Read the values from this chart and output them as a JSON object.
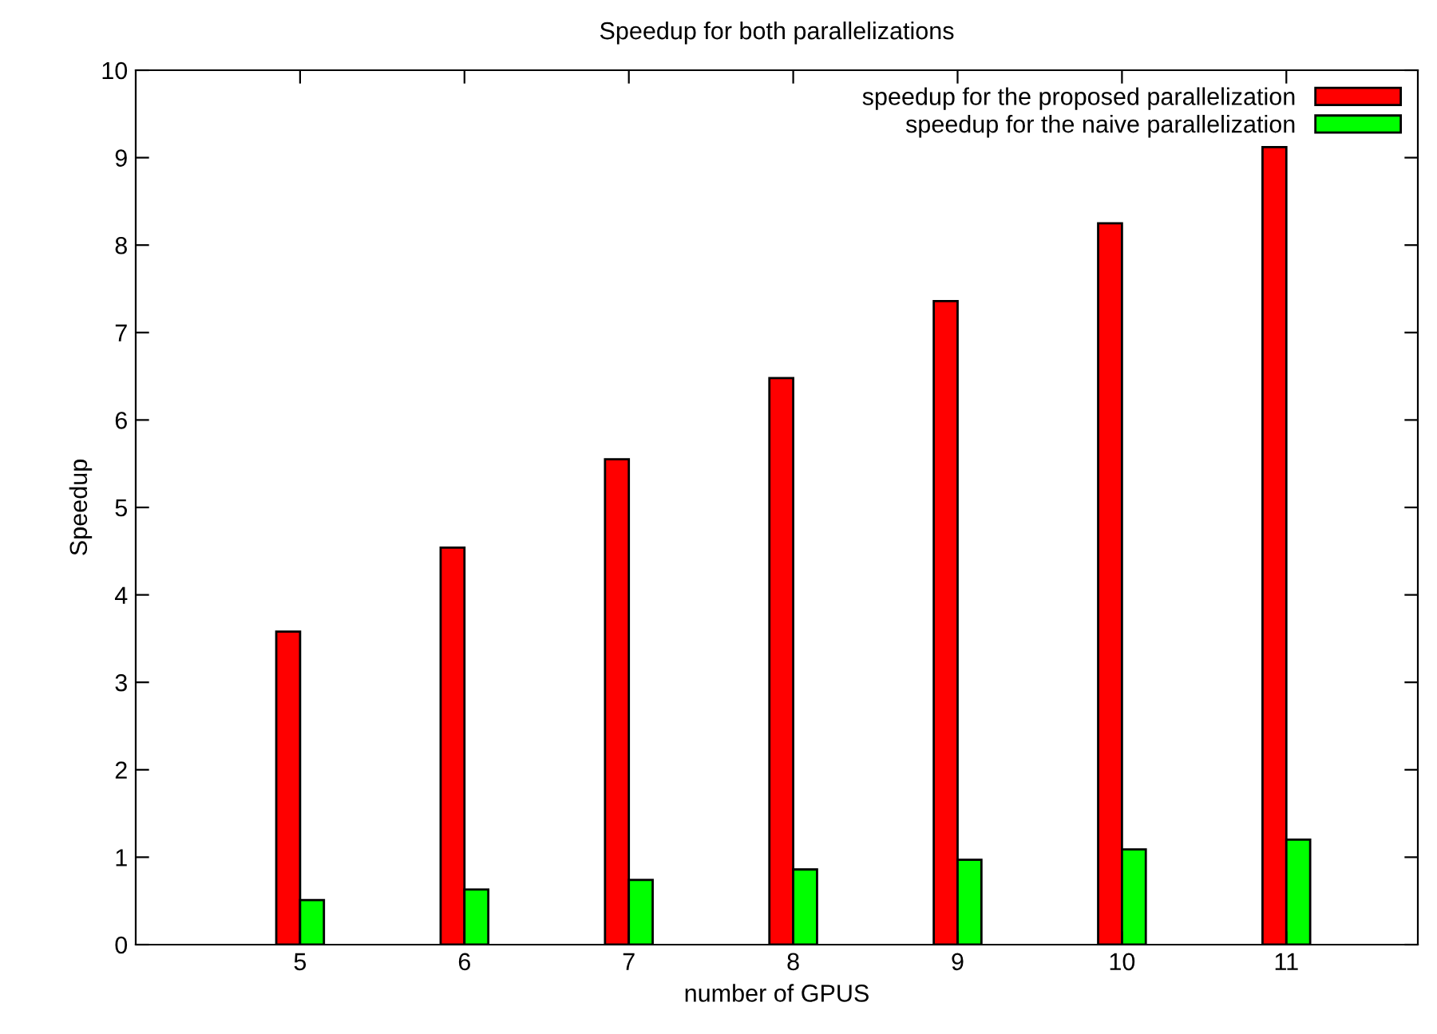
{
  "chart_data": {
    "type": "bar",
    "title": "Speedup for both parallelizations",
    "xlabel": "number of GPUS",
    "ylabel": "Speedup",
    "x": [
      5,
      6,
      7,
      8,
      9,
      10,
      11
    ],
    "series": [
      {
        "name": "speedup for the proposed parallelization",
        "color": "#ff0000",
        "values": [
          3.58,
          4.54,
          5.55,
          6.48,
          7.36,
          8.25,
          9.12
        ]
      },
      {
        "name": "speedup for the naive parallelization",
        "color": "#00ff00",
        "values": [
          0.51,
          0.63,
          0.74,
          0.86,
          0.97,
          1.09,
          1.2
        ]
      }
    ],
    "xlim": [
      4,
      11.8
    ],
    "xticks": [
      5,
      6,
      7,
      8,
      9,
      10,
      11
    ],
    "ylim": [
      0,
      10
    ],
    "yticks": [
      0,
      1,
      2,
      3,
      4,
      5,
      6,
      7,
      8,
      9,
      10
    ],
    "grid": false,
    "legend": "top right"
  }
}
